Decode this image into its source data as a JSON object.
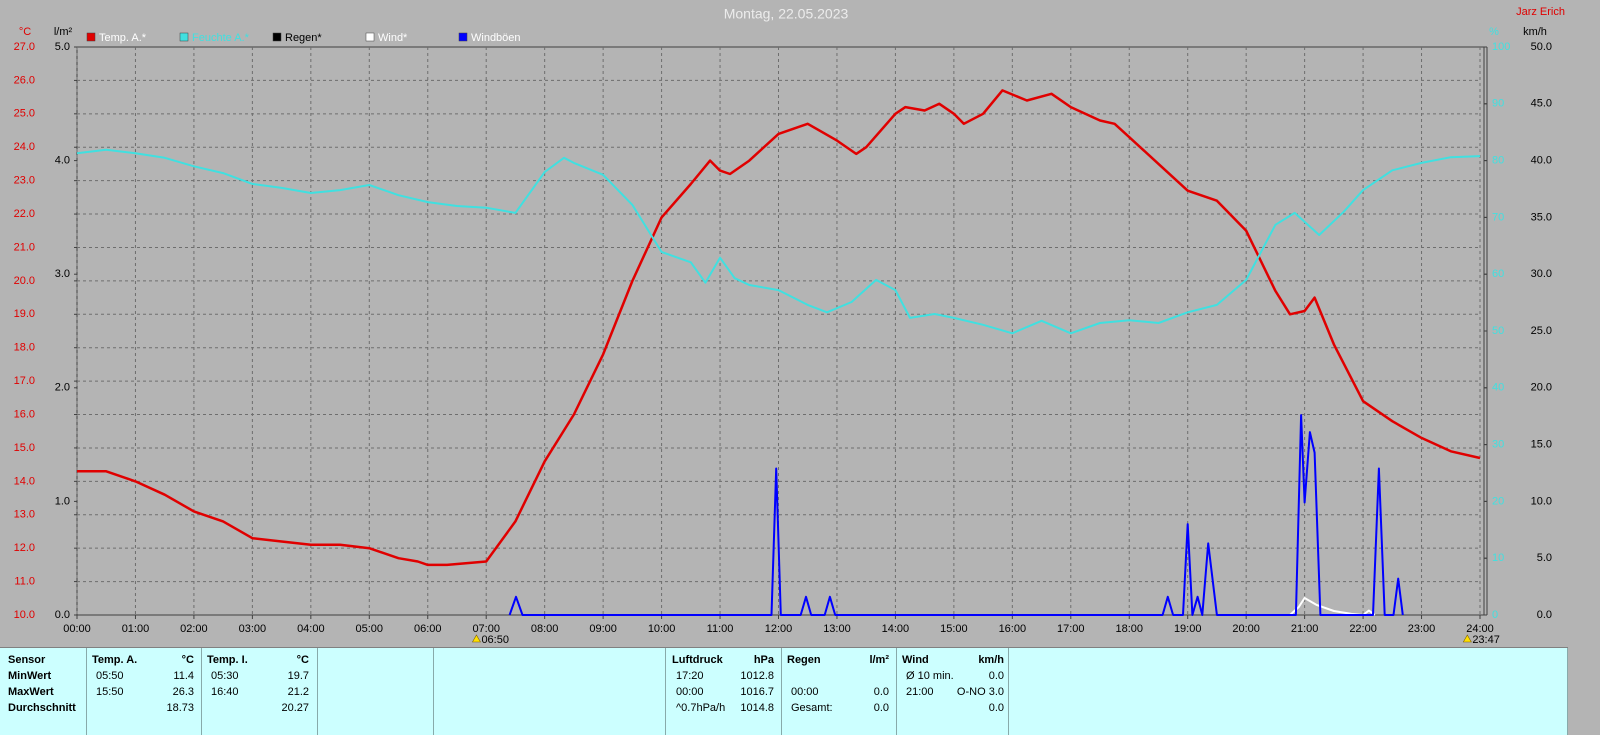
{
  "chart_data": {
    "type": "line",
    "title": "Montag, 22.05.2023",
    "author": "Jarz Erich",
    "grid": true,
    "xlim": [
      0,
      24
    ],
    "xticks": [
      {
        "value": 0,
        "label": "00:00"
      },
      {
        "value": 1,
        "label": "01:00"
      },
      {
        "value": 2,
        "label": "02:00"
      },
      {
        "value": 3,
        "label": "03:00"
      },
      {
        "value": 4,
        "label": "04:00"
      },
      {
        "value": 5,
        "label": "05:00"
      },
      {
        "value": 6,
        "label": "06:00"
      },
      {
        "value": 7,
        "label": "07:00"
      },
      {
        "value": 8,
        "label": "08:00"
      },
      {
        "value": 9,
        "label": "09:00"
      },
      {
        "value": 10,
        "label": "10:00"
      },
      {
        "value": 11,
        "label": "11:00"
      },
      {
        "value": 12,
        "label": "12:00"
      },
      {
        "value": 13,
        "label": "13:00"
      },
      {
        "value": 14,
        "label": "14:00"
      },
      {
        "value": 15,
        "label": "15:00"
      },
      {
        "value": 16,
        "label": "16:00"
      },
      {
        "value": 17,
        "label": "17:00"
      },
      {
        "value": 18,
        "label": "18:00"
      },
      {
        "value": 19,
        "label": "19:00"
      },
      {
        "value": 20,
        "label": "20:00"
      },
      {
        "value": 21,
        "label": "21:00"
      },
      {
        "value": 22,
        "label": "22:00"
      },
      {
        "value": 23,
        "label": "23:00"
      },
      {
        "value": 24,
        "label": "24:00"
      }
    ],
    "axes": [
      {
        "label": "°C",
        "color": "#e00000",
        "lim": [
          10,
          27
        ],
        "ticks": [
          {
            "value": 10,
            "label": "10.0"
          },
          {
            "value": 11,
            "label": "11.0"
          },
          {
            "value": 12,
            "label": "12.0"
          },
          {
            "value": 13,
            "label": "13.0"
          },
          {
            "value": 14,
            "label": "14.0"
          },
          {
            "value": 15,
            "label": "15.0"
          },
          {
            "value": 16,
            "label": "16.0"
          },
          {
            "value": 17,
            "label": "17.0"
          },
          {
            "value": 18,
            "label": "18.0"
          },
          {
            "value": 19,
            "label": "19.0"
          },
          {
            "value": 20,
            "label": "20.0"
          },
          {
            "value": 21,
            "label": "21.0"
          },
          {
            "value": 22,
            "label": "22.0"
          },
          {
            "value": 23,
            "label": "23.0"
          },
          {
            "value": 24,
            "label": "24.0"
          },
          {
            "value": 25,
            "label": "25.0"
          },
          {
            "value": 26,
            "label": "26.0"
          },
          {
            "value": 27,
            "label": "27.0"
          }
        ]
      },
      {
        "label": "l/m²",
        "color": "#000000",
        "lim": [
          0,
          5
        ],
        "ticks": [
          {
            "value": 0,
            "label": "0.0"
          },
          {
            "value": 1,
            "label": "1.0"
          },
          {
            "value": 2,
            "label": "2.0"
          },
          {
            "value": 3,
            "label": "3.0"
          },
          {
            "value": 4,
            "label": "4.0"
          },
          {
            "value": 5,
            "label": "5.0"
          }
        ]
      },
      {
        "label": "%",
        "color": "#40e0e0",
        "lim": [
          0,
          100
        ],
        "ticks": [
          0,
          10,
          20,
          30,
          40,
          50,
          60,
          70,
          80,
          90,
          100
        ]
      },
      {
        "label": "km/h",
        "color": "#000000",
        "lim": [
          0,
          50
        ],
        "ticks": [
          {
            "value": 0,
            "label": "0.0"
          },
          {
            "value": 5,
            "label": "5.0"
          },
          {
            "value": 10,
            "label": "10.0"
          },
          {
            "value": 15,
            "label": "15.0"
          },
          {
            "value": 20,
            "label": "20.0"
          },
          {
            "value": 25,
            "label": "25.0"
          },
          {
            "value": 30,
            "label": "30.0"
          },
          {
            "value": 35,
            "label": "35.0"
          },
          {
            "value": 40,
            "label": "40.0"
          },
          {
            "value": 45,
            "label": "45.0"
          },
          {
            "value": 50,
            "label": "50.0"
          }
        ]
      }
    ],
    "series": [
      {
        "name": "Temp. A.*",
        "color": "#e00000",
        "axis": 0,
        "x": [
          0,
          0.5,
          1,
          1.5,
          2,
          2.5,
          3,
          3.5,
          4,
          4.5,
          5,
          5.5,
          5.83,
          6,
          6.33,
          7,
          7.5,
          8,
          8.5,
          9,
          9.5,
          10,
          10.5,
          10.83,
          11,
          11.17,
          11.5,
          12,
          12.5,
          13,
          13.33,
          13.5,
          14,
          14.17,
          14.5,
          14.75,
          15,
          15.17,
          15.5,
          15.83,
          16.25,
          16.67,
          17,
          17.5,
          17.75,
          18,
          18.5,
          19,
          19.5,
          20,
          20.5,
          20.75,
          21,
          21.17,
          21.5,
          22,
          22.5,
          23,
          23.5,
          24
        ],
        "values": [
          14.3,
          14.3,
          14.0,
          13.6,
          13.1,
          12.8,
          12.3,
          12.2,
          12.1,
          12.1,
          12.0,
          11.7,
          11.6,
          11.5,
          11.5,
          11.6,
          12.8,
          14.6,
          16.0,
          17.8,
          20.0,
          21.9,
          22.9,
          23.6,
          23.3,
          23.2,
          23.6,
          24.4,
          24.7,
          24.2,
          23.8,
          24.0,
          25.0,
          25.2,
          25.1,
          25.3,
          25.0,
          24.7,
          25.0,
          25.7,
          25.4,
          25.6,
          25.2,
          24.8,
          24.7,
          24.3,
          23.5,
          22.7,
          22.4,
          21.5,
          19.7,
          19.0,
          19.1,
          19.5,
          18.1,
          16.4,
          15.8,
          15.3,
          14.9,
          14.7
        ]
      },
      {
        "name": "Feuchte A.*",
        "color": "#40e0e0",
        "axis": 2,
        "x": [
          0,
          0.5,
          1,
          1.5,
          2,
          2.5,
          3,
          3.5,
          4,
          4.5,
          5,
          5.5,
          6,
          6.5,
          7,
          7.5,
          8,
          8.33,
          8.5,
          9,
          9.5,
          10,
          10.5,
          10.75,
          11,
          11.25,
          11.5,
          12,
          12.5,
          12.83,
          13.25,
          13.67,
          14,
          14.25,
          14.67,
          15,
          15.5,
          16,
          16.5,
          17,
          17.5,
          18,
          18.5,
          19,
          19.5,
          20,
          20.5,
          20.83,
          21.25,
          21.67,
          22,
          22.5,
          23,
          23.5,
          24
        ],
        "values": [
          81.3,
          81.9,
          81.3,
          80.5,
          79.0,
          77.8,
          75.9,
          75.2,
          74.3,
          74.8,
          75.7,
          73.9,
          72.7,
          72.0,
          71.7,
          70.8,
          78.0,
          80.5,
          79.6,
          77.5,
          72.2,
          63.9,
          62.1,
          58.5,
          62.9,
          59.3,
          58.1,
          57.2,
          54.6,
          53.3,
          55.1,
          59.0,
          57.2,
          52.3,
          53.0,
          52.3,
          51.1,
          49.6,
          51.8,
          49.6,
          51.4,
          51.9,
          51.4,
          53.3,
          54.6,
          59.0,
          68.7,
          70.8,
          66.9,
          71.0,
          74.8,
          78.3,
          79.6,
          80.6,
          80.8
        ]
      },
      {
        "name": "Regen*",
        "color": "#000000",
        "axis": 1,
        "x": [],
        "values": []
      },
      {
        "name": "Wind*",
        "color": "#ffffff",
        "axis": 3,
        "x": [
          20.75,
          20.9,
          21.0,
          21.2,
          21.5,
          21.8,
          22.0,
          22.1,
          22.2
        ],
        "values": [
          0,
          0.7,
          1.5,
          0.9,
          0.35,
          0.1,
          0,
          0.4,
          0
        ]
      },
      {
        "name": "Windböen",
        "color": "#0000ff",
        "axis": 3,
        "x": [
          7.4,
          7.51,
          7.62,
          11.88,
          11.96,
          12.04,
          12.38,
          12.47,
          12.56,
          12.79,
          12.88,
          12.97,
          18.57,
          18.66,
          18.75,
          18.92,
          19.0,
          19.08,
          19.17,
          19.25,
          19.35,
          19.5,
          20.85,
          20.94,
          21.0,
          21.09,
          21.17,
          21.27,
          22.17,
          22.27,
          22.37,
          22.52,
          22.6,
          22.68
        ],
        "values": [
          0,
          1.6,
          0,
          0,
          12.9,
          0,
          0,
          1.6,
          0,
          0,
          1.6,
          0,
          0,
          1.6,
          0,
          0,
          8.0,
          0,
          1.6,
          0,
          6.3,
          0,
          0,
          17.6,
          9.9,
          16.1,
          14.3,
          0,
          0,
          12.9,
          0,
          0,
          3.2,
          0
        ]
      }
    ],
    "annotations": [
      {
        "label": "06:50",
        "x": 6.833
      },
      {
        "label": "23:47",
        "x": 23.783
      }
    ]
  },
  "stats": {
    "row_labels": [
      "Sensor",
      "MinWert",
      "MaxWert",
      "Durchschnitt"
    ],
    "groups": [
      {
        "name": "Temp. A.",
        "unit": "°C",
        "rows": [
          {
            "time": "05:50",
            "value": "11.4"
          },
          {
            "time": "15:50",
            "value": "26.3"
          },
          {
            "value": "18.73"
          }
        ]
      },
      {
        "name": "Temp. I.",
        "unit": "°C",
        "rows": [
          {
            "time": "05:30",
            "value": "19.7"
          },
          {
            "time": "16:40",
            "value": "21.2"
          },
          {
            "value": "20.27"
          }
        ]
      },
      {
        "name": "Luftdruck",
        "unit": "hPa",
        "rows": [
          {
            "time": "17:20",
            "value": "1012.8"
          },
          {
            "time": "00:00",
            "value": "1016.7"
          },
          {
            "time": "^0.7hPa/h",
            "value": "1014.8"
          }
        ]
      },
      {
        "name": "Regen",
        "unit": "l/m²",
        "rows": [
          null,
          {
            "time": "00:00",
            "value": "0.0"
          },
          {
            "time": "Gesamt:",
            "value": "0.0"
          }
        ]
      },
      {
        "name": "Wind",
        "unit": "km/h",
        "rows": [
          {
            "time": "Ø 10 min.",
            "value": "0.0"
          },
          {
            "time": "21:00",
            "value": "O-NO 3.0"
          },
          {
            "value": "0.0"
          }
        ]
      }
    ]
  }
}
